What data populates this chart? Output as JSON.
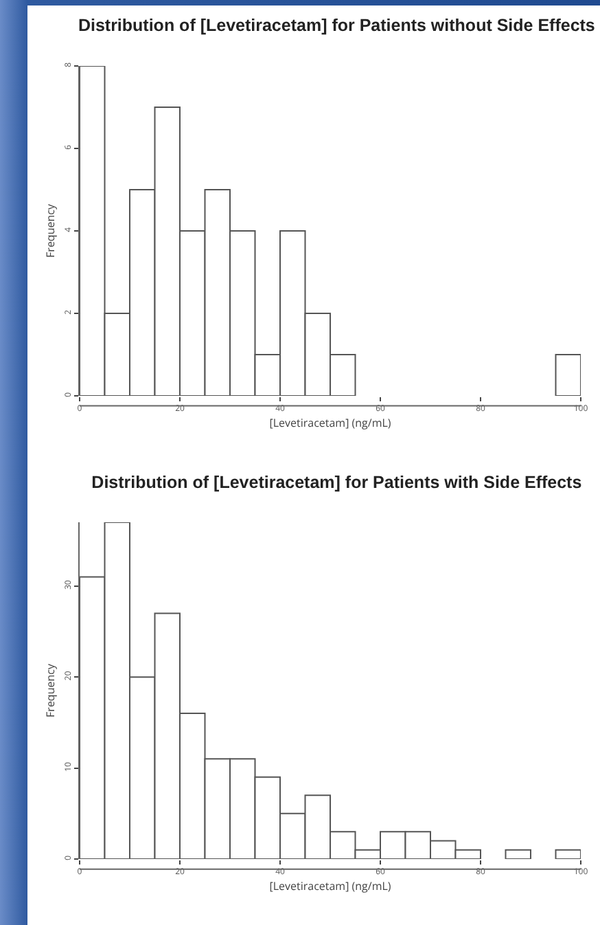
{
  "chart_data": [
    {
      "type": "histogram",
      "title": "Distribution of [Levetiracetam] for Patients without Side Effects",
      "xlabel": "[Levetiracetam] (ng/mL)",
      "ylabel": "Frequency",
      "bins": [
        0,
        5,
        10,
        15,
        20,
        25,
        30,
        35,
        40,
        45,
        50,
        55,
        60,
        65,
        70,
        75,
        80,
        85,
        90,
        95,
        100
      ],
      "values": [
        8,
        2,
        5,
        7,
        4,
        5,
        4,
        1,
        4,
        2,
        1,
        0,
        0,
        0,
        0,
        0,
        0,
        0,
        0,
        1
      ],
      "color": "#ffffff",
      "xlim": [
        0,
        100
      ],
      "xticks": [
        0,
        20,
        40,
        60,
        80,
        100
      ],
      "ylim": [
        0,
        8
      ],
      "yticks": [
        0,
        2,
        4,
        6,
        8
      ],
      "grid": false
    },
    {
      "type": "histogram",
      "title": "Distribution of [Levetiracetam] for Patients with Side Effects",
      "xlabel": "[Levetiracetam] (ng/mL)",
      "ylabel": "Frequency",
      "bins": [
        0,
        5,
        10,
        15,
        20,
        25,
        30,
        35,
        40,
        45,
        50,
        55,
        60,
        65,
        70,
        75,
        80,
        85,
        90,
        95,
        100
      ],
      "values": [
        31,
        37,
        20,
        27,
        16,
        11,
        11,
        9,
        5,
        7,
        3,
        1,
        3,
        3,
        2,
        1,
        0,
        1,
        0,
        1
      ],
      "color": "#ffffff",
      "xlim": [
        0,
        100
      ],
      "xticks": [
        0,
        20,
        40,
        60,
        80,
        100
      ],
      "ylim": [
        0,
        37
      ],
      "yticks": [
        0,
        10,
        20,
        30
      ],
      "grid": false
    }
  ]
}
